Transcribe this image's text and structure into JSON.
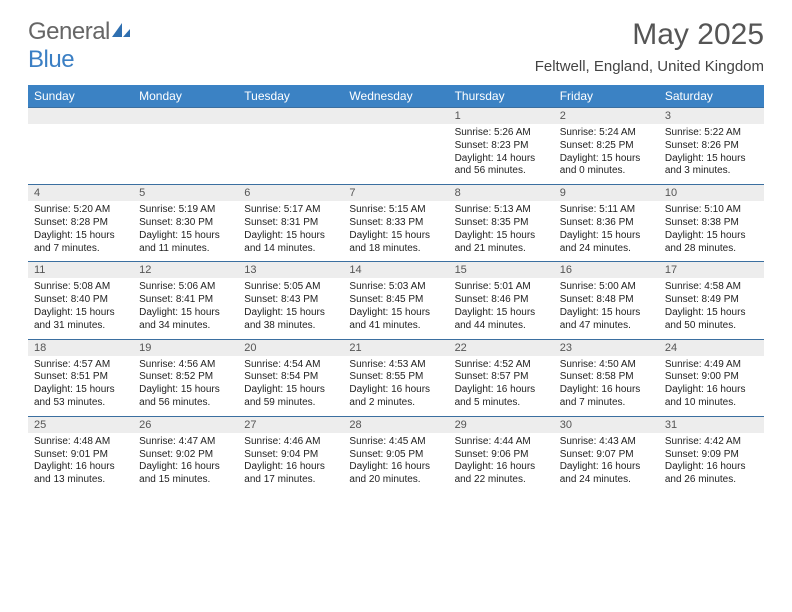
{
  "brand": {
    "general": "General",
    "blue": "Blue"
  },
  "title": {
    "month": "May 2025",
    "location": "Feltwell, England, United Kingdom"
  },
  "dow": [
    "Sunday",
    "Monday",
    "Tuesday",
    "Wednesday",
    "Thursday",
    "Friday",
    "Saturday"
  ],
  "colors": {
    "header_bg": "#3b82c4",
    "day_bg": "#ededed",
    "rule": "#3b6fa0",
    "brand_blue": "#3b7fc4",
    "text_gray": "#666"
  },
  "weeks": [
    [
      {
        "num": "",
        "sr": "",
        "ss": "",
        "dl": ""
      },
      {
        "num": "",
        "sr": "",
        "ss": "",
        "dl": ""
      },
      {
        "num": "",
        "sr": "",
        "ss": "",
        "dl": ""
      },
      {
        "num": "",
        "sr": "",
        "ss": "",
        "dl": ""
      },
      {
        "num": "1",
        "sr": "Sunrise: 5:26 AM",
        "ss": "Sunset: 8:23 PM",
        "dl": "Daylight: 14 hours and 56 minutes."
      },
      {
        "num": "2",
        "sr": "Sunrise: 5:24 AM",
        "ss": "Sunset: 8:25 PM",
        "dl": "Daylight: 15 hours and 0 minutes."
      },
      {
        "num": "3",
        "sr": "Sunrise: 5:22 AM",
        "ss": "Sunset: 8:26 PM",
        "dl": "Daylight: 15 hours and 3 minutes."
      }
    ],
    [
      {
        "num": "4",
        "sr": "Sunrise: 5:20 AM",
        "ss": "Sunset: 8:28 PM",
        "dl": "Daylight: 15 hours and 7 minutes."
      },
      {
        "num": "5",
        "sr": "Sunrise: 5:19 AM",
        "ss": "Sunset: 8:30 PM",
        "dl": "Daylight: 15 hours and 11 minutes."
      },
      {
        "num": "6",
        "sr": "Sunrise: 5:17 AM",
        "ss": "Sunset: 8:31 PM",
        "dl": "Daylight: 15 hours and 14 minutes."
      },
      {
        "num": "7",
        "sr": "Sunrise: 5:15 AM",
        "ss": "Sunset: 8:33 PM",
        "dl": "Daylight: 15 hours and 18 minutes."
      },
      {
        "num": "8",
        "sr": "Sunrise: 5:13 AM",
        "ss": "Sunset: 8:35 PM",
        "dl": "Daylight: 15 hours and 21 minutes."
      },
      {
        "num": "9",
        "sr": "Sunrise: 5:11 AM",
        "ss": "Sunset: 8:36 PM",
        "dl": "Daylight: 15 hours and 24 minutes."
      },
      {
        "num": "10",
        "sr": "Sunrise: 5:10 AM",
        "ss": "Sunset: 8:38 PM",
        "dl": "Daylight: 15 hours and 28 minutes."
      }
    ],
    [
      {
        "num": "11",
        "sr": "Sunrise: 5:08 AM",
        "ss": "Sunset: 8:40 PM",
        "dl": "Daylight: 15 hours and 31 minutes."
      },
      {
        "num": "12",
        "sr": "Sunrise: 5:06 AM",
        "ss": "Sunset: 8:41 PM",
        "dl": "Daylight: 15 hours and 34 minutes."
      },
      {
        "num": "13",
        "sr": "Sunrise: 5:05 AM",
        "ss": "Sunset: 8:43 PM",
        "dl": "Daylight: 15 hours and 38 minutes."
      },
      {
        "num": "14",
        "sr": "Sunrise: 5:03 AM",
        "ss": "Sunset: 8:45 PM",
        "dl": "Daylight: 15 hours and 41 minutes."
      },
      {
        "num": "15",
        "sr": "Sunrise: 5:01 AM",
        "ss": "Sunset: 8:46 PM",
        "dl": "Daylight: 15 hours and 44 minutes."
      },
      {
        "num": "16",
        "sr": "Sunrise: 5:00 AM",
        "ss": "Sunset: 8:48 PM",
        "dl": "Daylight: 15 hours and 47 minutes."
      },
      {
        "num": "17",
        "sr": "Sunrise: 4:58 AM",
        "ss": "Sunset: 8:49 PM",
        "dl": "Daylight: 15 hours and 50 minutes."
      }
    ],
    [
      {
        "num": "18",
        "sr": "Sunrise: 4:57 AM",
        "ss": "Sunset: 8:51 PM",
        "dl": "Daylight: 15 hours and 53 minutes."
      },
      {
        "num": "19",
        "sr": "Sunrise: 4:56 AM",
        "ss": "Sunset: 8:52 PM",
        "dl": "Daylight: 15 hours and 56 minutes."
      },
      {
        "num": "20",
        "sr": "Sunrise: 4:54 AM",
        "ss": "Sunset: 8:54 PM",
        "dl": "Daylight: 15 hours and 59 minutes."
      },
      {
        "num": "21",
        "sr": "Sunrise: 4:53 AM",
        "ss": "Sunset: 8:55 PM",
        "dl": "Daylight: 16 hours and 2 minutes."
      },
      {
        "num": "22",
        "sr": "Sunrise: 4:52 AM",
        "ss": "Sunset: 8:57 PM",
        "dl": "Daylight: 16 hours and 5 minutes."
      },
      {
        "num": "23",
        "sr": "Sunrise: 4:50 AM",
        "ss": "Sunset: 8:58 PM",
        "dl": "Daylight: 16 hours and 7 minutes."
      },
      {
        "num": "24",
        "sr": "Sunrise: 4:49 AM",
        "ss": "Sunset: 9:00 PM",
        "dl": "Daylight: 16 hours and 10 minutes."
      }
    ],
    [
      {
        "num": "25",
        "sr": "Sunrise: 4:48 AM",
        "ss": "Sunset: 9:01 PM",
        "dl": "Daylight: 16 hours and 13 minutes."
      },
      {
        "num": "26",
        "sr": "Sunrise: 4:47 AM",
        "ss": "Sunset: 9:02 PM",
        "dl": "Daylight: 16 hours and 15 minutes."
      },
      {
        "num": "27",
        "sr": "Sunrise: 4:46 AM",
        "ss": "Sunset: 9:04 PM",
        "dl": "Daylight: 16 hours and 17 minutes."
      },
      {
        "num": "28",
        "sr": "Sunrise: 4:45 AM",
        "ss": "Sunset: 9:05 PM",
        "dl": "Daylight: 16 hours and 20 minutes."
      },
      {
        "num": "29",
        "sr": "Sunrise: 4:44 AM",
        "ss": "Sunset: 9:06 PM",
        "dl": "Daylight: 16 hours and 22 minutes."
      },
      {
        "num": "30",
        "sr": "Sunrise: 4:43 AM",
        "ss": "Sunset: 9:07 PM",
        "dl": "Daylight: 16 hours and 24 minutes."
      },
      {
        "num": "31",
        "sr": "Sunrise: 4:42 AM",
        "ss": "Sunset: 9:09 PM",
        "dl": "Daylight: 16 hours and 26 minutes."
      }
    ]
  ]
}
